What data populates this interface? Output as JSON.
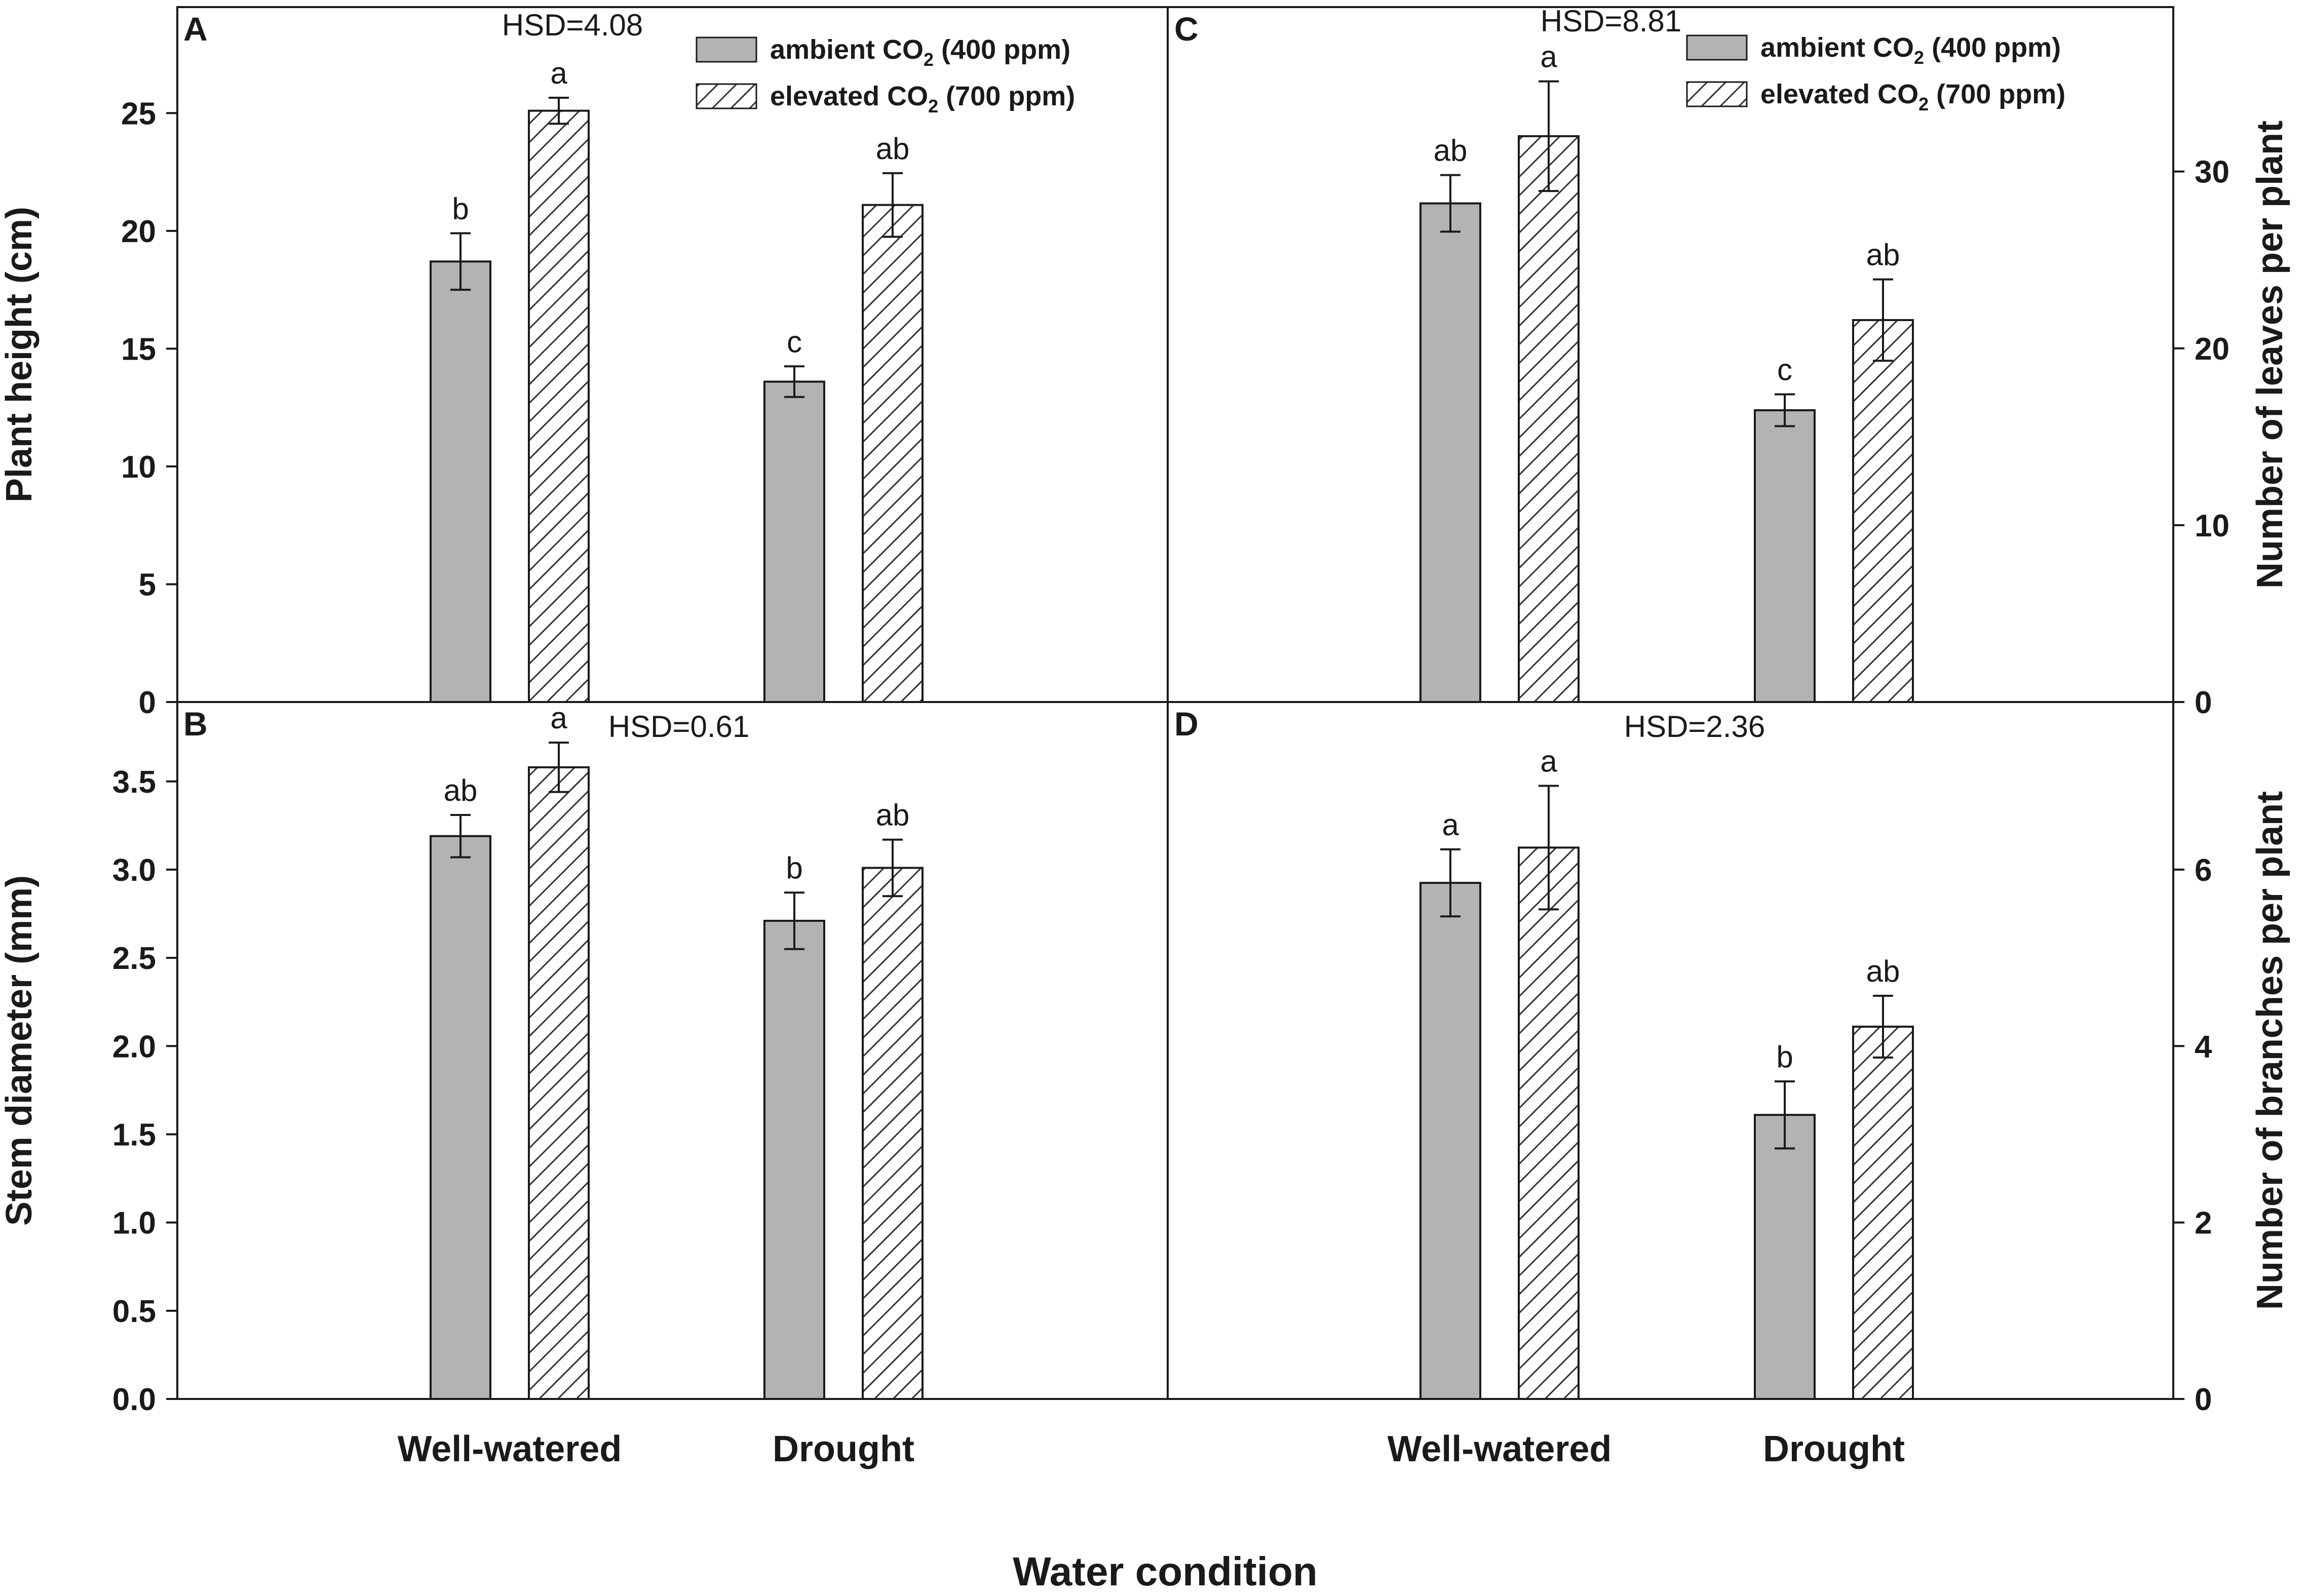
{
  "colors": {
    "ambient_fill": "#b3b3b3",
    "stroke": "#1a1a1a",
    "hatch": "#333333",
    "background": "#ffffff"
  },
  "x_title": "Water condition",
  "legend": {
    "ambient": {
      "prefix": "ambient CO",
      "sub": "2",
      "suffix": " (400 ppm)"
    },
    "elevated": {
      "prefix": "elevated CO",
      "sub": "2",
      "suffix": " (700 ppm)"
    }
  },
  "chart_data": [
    {
      "panel": "A",
      "type": "bar",
      "hsd": "HSD=4.08",
      "ylabel": "Plant height (cm)",
      "ylabel_side": "left",
      "ylim": [
        0,
        29.5
      ],
      "yticks": [
        "0",
        "5",
        "10",
        "15",
        "20",
        "25"
      ],
      "yticks_values": [
        0,
        5,
        10,
        15,
        20,
        25
      ],
      "categories": [
        "Well-watered",
        "Drought"
      ],
      "show_category_labels": false,
      "show_legend": true,
      "series": [
        {
          "name": "ambient CO2 (400 ppm)",
          "values": [
            18.7,
            13.6
          ],
          "errors": [
            1.2,
            0.65
          ],
          "letters": [
            "b",
            "c"
          ]
        },
        {
          "name": "elevated CO2 (700 ppm)",
          "values": [
            25.1,
            21.1
          ],
          "errors": [
            0.55,
            1.35
          ],
          "letters": [
            "a",
            "ab"
          ]
        }
      ]
    },
    {
      "panel": "C",
      "type": "bar",
      "hsd": "HSD=8.81",
      "ylabel": "Number of leaves per plant",
      "ylabel_side": "right",
      "ylim": [
        0,
        39.3
      ],
      "yticks": [
        "0",
        "10",
        "20",
        "30"
      ],
      "yticks_values": [
        0,
        10,
        20,
        30
      ],
      "categories": [
        "Well-watered",
        "Drought"
      ],
      "show_category_labels": false,
      "show_legend": true,
      "series": [
        {
          "name": "ambient CO2 (400 ppm)",
          "values": [
            28.2,
            16.5
          ],
          "errors": [
            1.6,
            0.9
          ],
          "letters": [
            "ab",
            "c"
          ]
        },
        {
          "name": "elevated CO2 (700 ppm)",
          "values": [
            32.0,
            21.6
          ],
          "errors": [
            3.1,
            2.3
          ],
          "letters": [
            "a",
            "ab"
          ]
        }
      ]
    },
    {
      "panel": "B",
      "type": "bar",
      "hsd": "HSD=0.61",
      "ylabel": "Stem diameter (mm)",
      "ylabel_side": "left",
      "ylim": [
        0,
        3.95
      ],
      "yticks": [
        "0.0",
        "0.5",
        "1.0",
        "1.5",
        "2.0",
        "2.5",
        "3.0",
        "3.5"
      ],
      "yticks_values": [
        0,
        0.5,
        1.0,
        1.5,
        2.0,
        2.5,
        3.0,
        3.5
      ],
      "categories": [
        "Well-watered",
        "Drought"
      ],
      "show_category_labels": true,
      "show_legend": false,
      "series": [
        {
          "name": "ambient CO2 (400 ppm)",
          "values": [
            3.19,
            2.71
          ],
          "errors": [
            0.12,
            0.16
          ],
          "letters": [
            "ab",
            "b"
          ]
        },
        {
          "name": "elevated CO2 (700 ppm)",
          "values": [
            3.58,
            3.01
          ],
          "errors": [
            0.14,
            0.16
          ],
          "letters": [
            "a",
            "ab"
          ]
        }
      ]
    },
    {
      "panel": "D",
      "type": "bar",
      "hsd": "HSD=2.36",
      "ylabel": "Number of branches per plant",
      "ylabel_side": "right",
      "ylim": [
        0,
        7.9
      ],
      "yticks": [
        "0",
        "2",
        "4",
        "6"
      ],
      "yticks_values": [
        0,
        2,
        4,
        6
      ],
      "categories": [
        "Well-watered",
        "Drought"
      ],
      "show_category_labels": true,
      "show_legend": false,
      "series": [
        {
          "name": "ambient CO2 (400 ppm)",
          "values": [
            5.85,
            3.22
          ],
          "errors": [
            0.38,
            0.38
          ],
          "letters": [
            "a",
            "b"
          ]
        },
        {
          "name": "elevated CO2 (700 ppm)",
          "values": [
            6.25,
            4.22
          ],
          "errors": [
            0.7,
            0.35
          ],
          "letters": [
            "a",
            "ab"
          ]
        }
      ]
    }
  ]
}
